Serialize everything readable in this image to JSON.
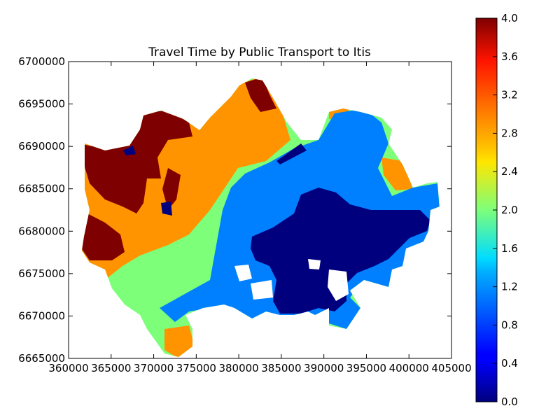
{
  "chart_data": {
    "type": "heatmap",
    "title": "Travel Time by Public Transport to Itis",
    "xlabel": "",
    "ylabel": "",
    "xlim": [
      360000,
      405000
    ],
    "ylim": [
      6665000,
      6700000
    ],
    "x_ticks": [
      "360000",
      "365000",
      "370000",
      "375000",
      "380000",
      "385000",
      "390000",
      "395000",
      "400000",
      "405000"
    ],
    "y_ticks": [
      "6665000",
      "6670000",
      "6675000",
      "6680000",
      "6685000",
      "6690000",
      "6695000",
      "6700000"
    ],
    "colorbar": {
      "colormap": "jet",
      "min": 0.0,
      "max": 4.0,
      "ticks": [
        "0.0",
        "0.4",
        "0.8",
        "1.2",
        "1.6",
        "2.0",
        "2.4",
        "2.8",
        "3.2",
        "3.6",
        "4.0"
      ]
    },
    "classes": [
      {
        "value": 0.0,
        "color": "#00007f"
      },
      {
        "value": 1.0,
        "color": "#0080ff"
      },
      {
        "value": 2.0,
        "color": "#7dff7a"
      },
      {
        "value": 3.0,
        "color": "#ff9400"
      },
      {
        "value": 4.0,
        "color": "#7f0000"
      }
    ],
    "grid": false
  }
}
